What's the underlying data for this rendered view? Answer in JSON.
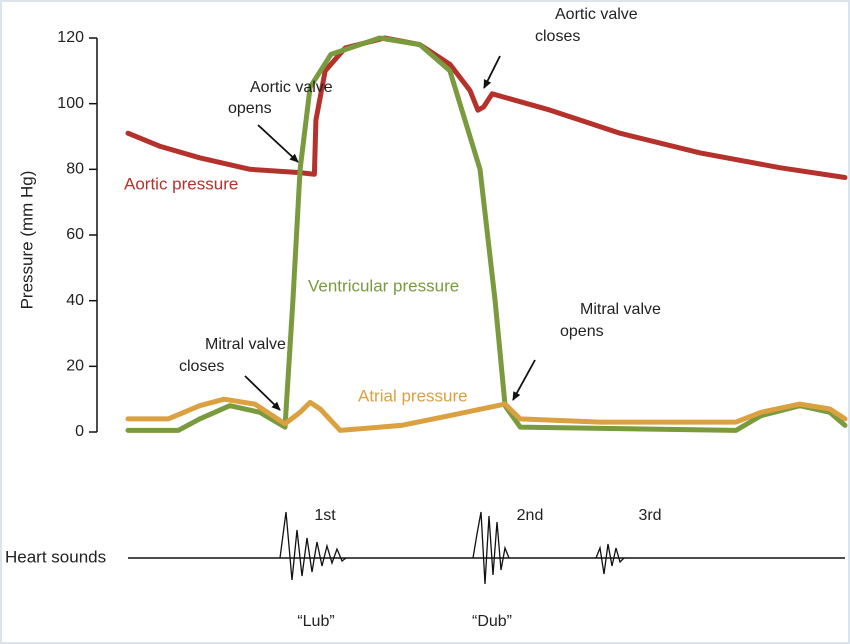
{
  "chart_data": {
    "type": "line",
    "ylabel": "Pressure (mm Hg)",
    "ylim": [
      0,
      120
    ],
    "yticks": [
      0,
      20,
      40,
      60,
      80,
      100,
      120
    ],
    "xlim": [
      0,
      100
    ],
    "series": [
      {
        "name": "Aortic pressure",
        "color": "#b5312b",
        "x": [
          0,
          4.5,
          10,
          17,
          24,
          26,
          26.2,
          27.5,
          30.3,
          35.8,
          40.7,
          44.9,
          47.7,
          48.8,
          49.6,
          50.8,
          58.9,
          68.6,
          79.8,
          90.9,
          100
        ],
        "values": [
          91,
          87,
          83.5,
          80,
          79,
          78.5,
          95,
          110,
          117,
          120,
          118,
          112,
          104,
          98,
          99,
          103,
          98,
          91,
          85,
          80.5,
          77.5
        ]
      },
      {
        "name": "Ventricular pressure",
        "color": "#7a9a3e",
        "x": [
          0,
          7,
          10,
          14.2,
          18.4,
          21.9,
          23,
          24,
          25.4,
          28.3,
          35.1,
          40.7,
          44.9,
          49.1,
          51.2,
          52.6,
          54.7,
          84.8,
          88.3,
          93.7,
          97.9,
          100
        ],
        "values": [
          0.5,
          0.5,
          4,
          8,
          6,
          1.5,
          40,
          80,
          105,
          115,
          120,
          118,
          110,
          80,
          40,
          8,
          1.5,
          0.5,
          5,
          8,
          6,
          2
        ]
      },
      {
        "name": "Atrial pressure",
        "color": "#dba040",
        "x": [
          0,
          5.6,
          10,
          13.4,
          17.7,
          21.9,
          24,
          25.4,
          26.8,
          29.6,
          38.1,
          44.9,
          52.6,
          54.7,
          65.8,
          84.8,
          88.3,
          93.7,
          97.9,
          100
        ],
        "values": [
          4,
          4,
          8,
          10,
          8.5,
          2.5,
          6,
          9,
          7,
          0.5,
          2,
          5,
          8.5,
          4,
          3,
          3,
          6,
          8.5,
          7,
          4
        ]
      }
    ],
    "annotations": [
      {
        "lines": [
          "Aortic valve",
          "opens"
        ]
      },
      {
        "lines": [
          "Aortic valve",
          "closes"
        ]
      },
      {
        "lines": [
          "Mitral valve",
          "closes"
        ]
      },
      {
        "lines": [
          "Mitral valve",
          "opens"
        ]
      }
    ],
    "heart_sounds": {
      "label": "Heart sounds",
      "sounds": [
        "1st",
        "2nd",
        "3rd"
      ],
      "names": [
        "“Lub”",
        "“Dub”"
      ]
    }
  }
}
